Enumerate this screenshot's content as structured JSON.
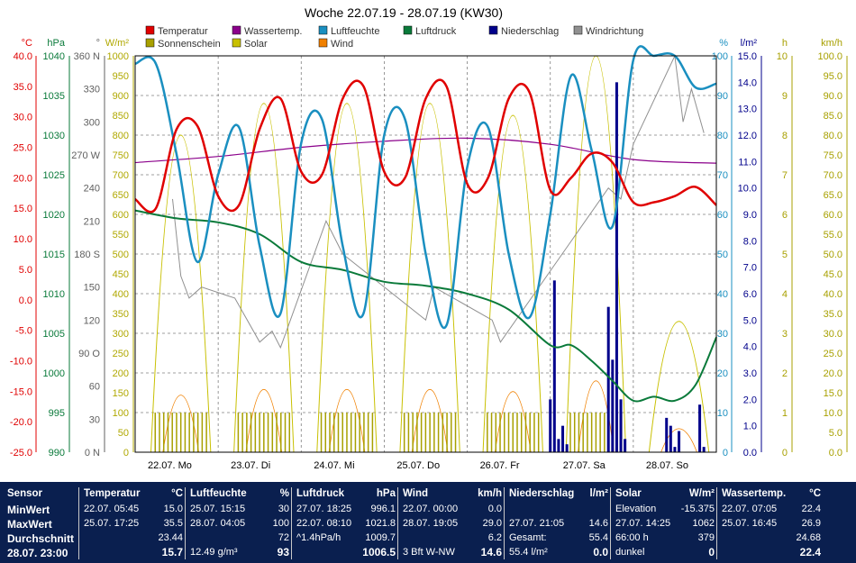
{
  "chart_data": {
    "type": "line",
    "title": "Woche 22.07.19 - 28.07.19 (KW30)",
    "day_labels": [
      "22.07.  Mo",
      "23.07.  Di",
      "24.07.  Mi",
      "25.07.  Do",
      "26.07.  Fr",
      "27.07.  Sa",
      "28.07.  So"
    ],
    "legend": [
      {
        "name": "Temperatur",
        "color": "#e00000"
      },
      {
        "name": "Wassertemp.",
        "color": "#8b008b"
      },
      {
        "name": "Luftfeuchte",
        "color": "#1a8fc0"
      },
      {
        "name": "Luftdruck",
        "color": "#0a7a3a"
      },
      {
        "name": "Niederschlag",
        "color": "#00008b"
      },
      {
        "name": "Windrichtung",
        "color": "#909090"
      },
      {
        "name": "Sonnenschein",
        "color": "#a8a000"
      },
      {
        "name": "Solar",
        "color": "#c8c000"
      },
      {
        "name": "Wind",
        "color": "#f08000"
      }
    ],
    "axes": [
      {
        "unit": "°C",
        "color": "#e00000",
        "ticks": [
          "40.0",
          "35.0",
          "30.0",
          "25.0",
          "20.0",
          "15.0",
          "10.0",
          "5.0",
          "0.0",
          "-5.0",
          "-10.0",
          "-15.0",
          "-20.0",
          "-25.0"
        ]
      },
      {
        "unit": "hPa",
        "color": "#0a7a3a",
        "ticks": [
          "1040",
          "1035",
          "1030",
          "1025",
          "1020",
          "1015",
          "1010",
          "1005",
          "1000",
          "995",
          "990"
        ]
      },
      {
        "unit": "°",
        "color": "#606060",
        "ticks": [
          "360 N",
          "330",
          "300",
          "270 W",
          "240",
          "210",
          "180 S",
          "150",
          "120",
          "90 O",
          "60",
          "30",
          "0 N"
        ]
      },
      {
        "unit": "W/m²",
        "color": "#b0a800",
        "ticks": [
          "1000",
          "950",
          "900",
          "850",
          "800",
          "750",
          "700",
          "650",
          "600",
          "550",
          "500",
          "450",
          "400",
          "350",
          "300",
          "250",
          "200",
          "150",
          "100",
          "50",
          "0"
        ]
      },
      {
        "unit": "%",
        "color": "#1a8fc0",
        "ticks": [
          "100",
          "90",
          "80",
          "70",
          "60",
          "50",
          "40",
          "30",
          "20",
          "10",
          "0"
        ]
      },
      {
        "unit": "l/m²",
        "color": "#00008b",
        "ticks": [
          "15.0",
          "14.0",
          "13.0",
          "12.0",
          "11.0",
          "10.0",
          "9.0",
          "8.0",
          "7.0",
          "6.0",
          "5.0",
          "4.0",
          "3.0",
          "2.0",
          "1.0",
          "0.0"
        ]
      },
      {
        "unit": "h",
        "color": "#a8a000",
        "ticks": [
          "10",
          "9",
          "8",
          "7",
          "6",
          "5",
          "4",
          "3",
          "2",
          "1",
          "0"
        ]
      },
      {
        "unit": "km/h",
        "color": "#a8a000",
        "ticks": [
          "100.0",
          "95.0",
          "90.0",
          "85.0",
          "80.0",
          "75.0",
          "70.0",
          "65.0",
          "60.0",
          "55.0",
          "50.0",
          "45.0",
          "40.0",
          "35.0",
          "30.0",
          "25.0",
          "20.0",
          "15.0",
          "10.0",
          "5.0",
          "0.0"
        ]
      }
    ],
    "series": [
      {
        "name": "Temperatur",
        "color": "#e00000",
        "x": [
          0,
          0.25,
          0.5,
          0.75,
          1,
          1.25,
          1.5,
          1.75,
          2,
          2.25,
          2.5,
          2.75,
          3,
          3.25,
          3.5,
          3.75,
          4,
          4.25,
          4.5,
          4.75,
          5,
          5.25,
          5.5,
          5.75,
          6,
          6.25,
          6.5,
          6.75,
          7
        ],
        "y": [
          16.5,
          15,
          28,
          28.5,
          17,
          15.5,
          28,
          33,
          21,
          20.5,
          33,
          35,
          21,
          20,
          33,
          35,
          19,
          20,
          33,
          34,
          18,
          20,
          24,
          22.5,
          16,
          16,
          17,
          18.5,
          15.5
        ]
      },
      {
        "name": "Luftfeuchte",
        "color": "#1a8fc0",
        "x": [
          0,
          0.25,
          0.5,
          0.75,
          1,
          1.25,
          1.5,
          1.75,
          2,
          2.25,
          2.5,
          2.75,
          3,
          3.25,
          3.5,
          3.75,
          4,
          4.25,
          4.5,
          4.75,
          5,
          5.25,
          5.5,
          5.75,
          6,
          6.25,
          6.5,
          6.75,
          7
        ],
        "y": [
          98,
          98,
          75,
          48,
          70,
          82,
          52,
          35,
          78,
          84,
          52,
          35,
          80,
          84,
          50,
          32,
          72,
          82,
          50,
          34,
          60,
          95,
          76,
          57,
          99,
          100,
          100,
          92,
          93
        ]
      },
      {
        "name": "Luftdruck",
        "color": "#0a7a3a",
        "x": [
          0,
          0.5,
          1,
          1.5,
          2,
          2.5,
          3,
          3.5,
          4,
          4.5,
          5,
          5.25,
          5.5,
          5.75,
          6,
          6.25,
          6.5,
          6.75,
          7
        ],
        "y": [
          1020.5,
          1019.5,
          1019,
          1017.5,
          1014,
          1013,
          1011.5,
          1011,
          1010,
          1008,
          1003.5,
          1003.5,
          1001.5,
          999,
          996.5,
          997,
          996.5,
          998.5,
          1004.5
        ]
      },
      {
        "name": "Wassertemp.",
        "color": "#8b008b",
        "x": [
          0,
          1,
          2,
          3,
          4,
          5,
          6,
          7
        ],
        "y": [
          22.5,
          23.5,
          25,
          26,
          26.5,
          25.5,
          23,
          22.4
        ]
      },
      {
        "name": "Windrichtung",
        "color": "#909090",
        "x": [
          0.45,
          0.55,
          0.65,
          0.8,
          1.2,
          1.5,
          1.65,
          1.75,
          2.3,
          2.5,
          3.5,
          3.6,
          4.3,
          4.4,
          5.7,
          5.85,
          6,
          6.5,
          6.6,
          6.7,
          6.85
        ],
        "y": [
          230,
          160,
          140,
          150,
          140,
          100,
          110,
          95,
          210,
          180,
          120,
          150,
          120,
          100,
          240,
          230,
          280,
          360,
          300,
          330,
          290
        ]
      },
      {
        "name": "Niederschlag",
        "color": "#00008b",
        "x": [
          5.0,
          5.05,
          5.1,
          5.15,
          5.2,
          5.7,
          5.75,
          5.8,
          5.85,
          5.9,
          6.4,
          6.45,
          6.5,
          6.55,
          6.8,
          6.85
        ],
        "y": [
          2.0,
          6.5,
          0.5,
          1.0,
          0.3,
          5.5,
          3.5,
          14.0,
          2.0,
          0.5,
          1.3,
          1.0,
          0.2,
          0.8,
          1.8,
          0.2
        ]
      }
    ]
  },
  "panel": {
    "col0": {
      "header": "Sensor",
      "rows": [
        "MinWert",
        "MaxWert",
        "Durchschnitt"
      ],
      "last": "28.07.  23:00"
    },
    "col1": {
      "header": "Temperatur",
      "unit": "°C",
      "r1a": "22.07.  05:45",
      "r1b": "15.0",
      "r2a": "25.07.  17:25",
      "r2b": "35.5",
      "r3b": "23.44",
      "last": "15.7"
    },
    "col2": {
      "header": "Luftfeuchte",
      "unit": "%",
      "r1a": "25.07.  15:15",
      "r1b": "30",
      "r2a": "28.07.  04:05",
      "r2b": "100",
      "r3b": "72",
      "lasta": "12.49 g/m³",
      "last": "93"
    },
    "col3": {
      "header": "Luftdruck",
      "unit": "hPa",
      "r1a": "27.07.  18:25",
      "r1b": "996.1",
      "r2a": "22.07.  08:10",
      "r2b": "1021.8",
      "r3a": "^1.4hPa/h",
      "r3b": "1009.7",
      "last": "1006.5"
    },
    "col4": {
      "header": "Wind",
      "unit": "km/h",
      "r1a": "22.07.  00:00",
      "r1b": "0.0",
      "r2a": "28.07.  19:05",
      "r2b": "29.0",
      "r3b": "6.2",
      "lasta": "3 Bft W-NW",
      "last": "14.6"
    },
    "col5": {
      "header": "Niederschlag",
      "unit": "l/m²",
      "r2a": "27.07.  21:05",
      "r2b": "14.6",
      "r3a": "Gesamt:",
      "r3b": "55.4",
      "lasta": "55.4 l/m²",
      "last": "0.0"
    },
    "col6": {
      "header": "Solar",
      "unit": "W/m²",
      "r1a": "Elevation",
      "r1b": "-15.375",
      "r2a": "27.07.  14:25",
      "r2b": "1062",
      "r3a": "66:00 h",
      "r3b": "379",
      "lasta": "dunkel",
      "last": "0"
    },
    "col7": {
      "header": "Wassertemp.",
      "unit": "°C",
      "r1a": "22.07.  07:05",
      "r1b": "22.4",
      "r2a": "25.07.  16:45",
      "r2b": "26.9",
      "r3b": "24.68",
      "last": "22.4"
    }
  }
}
